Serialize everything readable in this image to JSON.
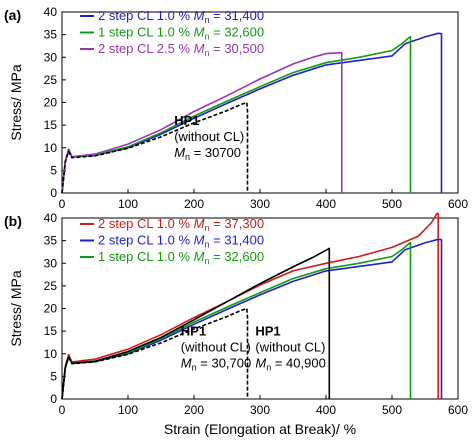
{
  "chart_data": [
    {
      "type": "line",
      "panel_label": "(a)",
      "ylabel": "Stress/ MPa",
      "xlabel": "",
      "xlim": [
        0,
        600
      ],
      "ylim": [
        0,
        40
      ],
      "x_ticks": [
        0,
        100,
        200,
        300,
        400,
        500,
        600
      ],
      "y_ticks": [
        0,
        5,
        10,
        15,
        20,
        25,
        30,
        35,
        40
      ],
      "legend_position": "top-left",
      "series": [
        {
          "label_prefix": "2 step CL 1.0 % ",
          "label_var": "M",
          "label_sub": "n",
          "label_suffix": " = 31,400",
          "color": "#1f1fd6",
          "dashed": false,
          "points": [
            [
              0,
              0
            ],
            [
              5,
              7
            ],
            [
              10,
              9.6
            ],
            [
              15,
              8
            ],
            [
              50,
              8.3
            ],
            [
              100,
              10
            ],
            [
              150,
              13
            ],
            [
              200,
              16.5
            ],
            [
              250,
              19.8
            ],
            [
              300,
              23
            ],
            [
              350,
              26
            ],
            [
              400,
              28.3
            ],
            [
              450,
              29.3
            ],
            [
              500,
              30.3
            ],
            [
              520,
              33
            ],
            [
              550,
              34.5
            ],
            [
              570,
              35.3
            ],
            [
              575,
              35.2
            ],
            [
              575,
              0
            ]
          ]
        },
        {
          "label_prefix": "1 step CL 1.0 % ",
          "label_var": "M",
          "label_sub": "n",
          "label_suffix": " = 32,600",
          "color": "#139a13",
          "dashed": false,
          "points": [
            [
              0,
              0
            ],
            [
              5,
              7
            ],
            [
              10,
              9.4
            ],
            [
              15,
              8
            ],
            [
              50,
              8.4
            ],
            [
              100,
              10.2
            ],
            [
              150,
              13.3
            ],
            [
              200,
              17
            ],
            [
              250,
              20.3
            ],
            [
              300,
              23.5
            ],
            [
              350,
              26.6
            ],
            [
              400,
              28.8
            ],
            [
              450,
              30
            ],
            [
              500,
              31.5
            ],
            [
              515,
              33
            ],
            [
              527,
              34.5
            ],
            [
              528,
              34.5
            ],
            [
              528,
              0
            ]
          ]
        },
        {
          "label_prefix": "2 step CL 2.5 % ",
          "label_var": "M",
          "label_sub": "n",
          "label_suffix": " = 30,500",
          "color": "#9b34b8",
          "dashed": false,
          "points": [
            [
              0,
              0
            ],
            [
              5,
              7
            ],
            [
              10,
              9.7
            ],
            [
              15,
              8
            ],
            [
              50,
              8.6
            ],
            [
              100,
              10.8
            ],
            [
              150,
              14
            ],
            [
              200,
              18
            ],
            [
              250,
              21.5
            ],
            [
              300,
              25.2
            ],
            [
              350,
              28.5
            ],
            [
              380,
              30
            ],
            [
              400,
              30.8
            ],
            [
              422,
              31
            ],
            [
              424,
              31
            ],
            [
              424,
              0
            ]
          ]
        },
        {
          "label_prefix": "",
          "label_var": "",
          "label_sub": "",
          "label_suffix": "",
          "color": "#000000",
          "dashed": true,
          "points": [
            [
              0,
              0
            ],
            [
              5,
              6.8
            ],
            [
              10,
              9.2
            ],
            [
              15,
              7.8
            ],
            [
              50,
              8.2
            ],
            [
              100,
              9.9
            ],
            [
              150,
              12.4
            ],
            [
              200,
              15.5
            ],
            [
              250,
              18.2
            ],
            [
              270,
              19.5
            ],
            [
              280,
              20
            ],
            [
              281,
              18
            ],
            [
              281,
              0
            ]
          ]
        }
      ],
      "annotations": [
        {
          "lines": [
            "HP1",
            "(without CL)",
            "Mn = 30700"
          ],
          "var": "M",
          "sub": "n",
          "value": " = 30700",
          "anchor_x": 170,
          "anchor_y": 15
        }
      ]
    },
    {
      "type": "line",
      "panel_label": "(b)",
      "ylabel": "Stress/ MPa",
      "xlabel": "Strain (Elongation at Break)/ %",
      "xlim": [
        0,
        600
      ],
      "ylim": [
        0,
        40
      ],
      "x_ticks": [
        0,
        100,
        200,
        300,
        400,
        500,
        600
      ],
      "y_ticks": [
        0,
        5,
        10,
        15,
        20,
        25,
        30,
        35,
        40
      ],
      "legend_position": "top-left",
      "series": [
        {
          "label_prefix": "2 step CL 1.0 % ",
          "label_var": "M",
          "label_sub": "n",
          "label_suffix": " = 37,300",
          "color": "#d11a1a",
          "dashed": false,
          "points": [
            [
              0,
              0
            ],
            [
              5,
              7.2
            ],
            [
              10,
              9.8
            ],
            [
              15,
              8.2
            ],
            [
              50,
              8.8
            ],
            [
              100,
              11
            ],
            [
              150,
              14.2
            ],
            [
              200,
              18
            ],
            [
              250,
              21.5
            ],
            [
              300,
              25.2
            ],
            [
              350,
              28.3
            ],
            [
              400,
              30
            ],
            [
              450,
              31.5
            ],
            [
              500,
              33.5
            ],
            [
              540,
              36
            ],
            [
              560,
              39
            ],
            [
              568,
              41
            ],
            [
              570,
              41
            ],
            [
              570,
              0
            ]
          ]
        },
        {
          "label_prefix": "2 step CL 1.0 % ",
          "label_var": "M",
          "label_sub": "n",
          "label_suffix": " = 31,400",
          "color": "#1f1fd6",
          "dashed": false,
          "points": [
            [
              0,
              0
            ],
            [
              5,
              7
            ],
            [
              10,
              9.6
            ],
            [
              15,
              8
            ],
            [
              50,
              8.3
            ],
            [
              100,
              10
            ],
            [
              150,
              13
            ],
            [
              200,
              16.5
            ],
            [
              250,
              19.8
            ],
            [
              300,
              23
            ],
            [
              350,
              26
            ],
            [
              400,
              28.3
            ],
            [
              450,
              29.3
            ],
            [
              500,
              30.3
            ],
            [
              520,
              33
            ],
            [
              550,
              34.5
            ],
            [
              570,
              35.3
            ],
            [
              575,
              35.2
            ],
            [
              575,
              0
            ]
          ]
        },
        {
          "label_prefix": "1 step CL 1.0 % ",
          "label_var": "M",
          "label_sub": "n",
          "label_suffix": " = 32,600",
          "color": "#139a13",
          "dashed": false,
          "points": [
            [
              0,
              0
            ],
            [
              5,
              7
            ],
            [
              10,
              9.4
            ],
            [
              15,
              8
            ],
            [
              50,
              8.4
            ],
            [
              100,
              10.2
            ],
            [
              150,
              13.3
            ],
            [
              200,
              17
            ],
            [
              250,
              20.3
            ],
            [
              300,
              23.5
            ],
            [
              350,
              26.6
            ],
            [
              400,
              28.8
            ],
            [
              450,
              30
            ],
            [
              500,
              31.5
            ],
            [
              515,
              33
            ],
            [
              527,
              34.5
            ],
            [
              528,
              34.5
            ],
            [
              528,
              0
            ]
          ]
        },
        {
          "label_prefix": "",
          "label_var": "",
          "label_sub": "",
          "label_suffix": "",
          "color": "#000000",
          "dashed": true,
          "points": [
            [
              0,
              0
            ],
            [
              5,
              6.8
            ],
            [
              10,
              9.2
            ],
            [
              15,
              7.8
            ],
            [
              50,
              8.2
            ],
            [
              100,
              9.9
            ],
            [
              150,
              12.4
            ],
            [
              200,
              15.5
            ],
            [
              250,
              18.2
            ],
            [
              270,
              19.5
            ],
            [
              280,
              20
            ],
            [
              281,
              18
            ],
            [
              281,
              0
            ]
          ]
        },
        {
          "label_prefix": "",
          "label_var": "",
          "label_sub": "",
          "label_suffix": "",
          "color": "#000000",
          "dashed": false,
          "points": [
            [
              0,
              0
            ],
            [
              5,
              6.9
            ],
            [
              10,
              9.3
            ],
            [
              15,
              7.9
            ],
            [
              50,
              8.3
            ],
            [
              100,
              10.5
            ],
            [
              150,
              13.6
            ],
            [
              200,
              17.5
            ],
            [
              250,
              21.5
            ],
            [
              300,
              25.5
            ],
            [
              350,
              29.2
            ],
            [
              380,
              31.3
            ],
            [
              404,
              33.2
            ],
            [
              405,
              33.3
            ],
            [
              405,
              0
            ]
          ]
        }
      ],
      "annotations": [
        {
          "lines": [
            "HP1",
            "(without CL)",
            "Mn = 30,700"
          ],
          "var": "M",
          "sub": "n",
          "value": " = 30,700",
          "anchor_x": 180,
          "anchor_y": 14
        },
        {
          "lines": [
            "HP1",
            "(without CL)",
            "Mn = 40,900"
          ],
          "var": "M",
          "sub": "n",
          "value": " = 40,900",
          "anchor_x": 293,
          "anchor_y": 14
        }
      ]
    }
  ]
}
